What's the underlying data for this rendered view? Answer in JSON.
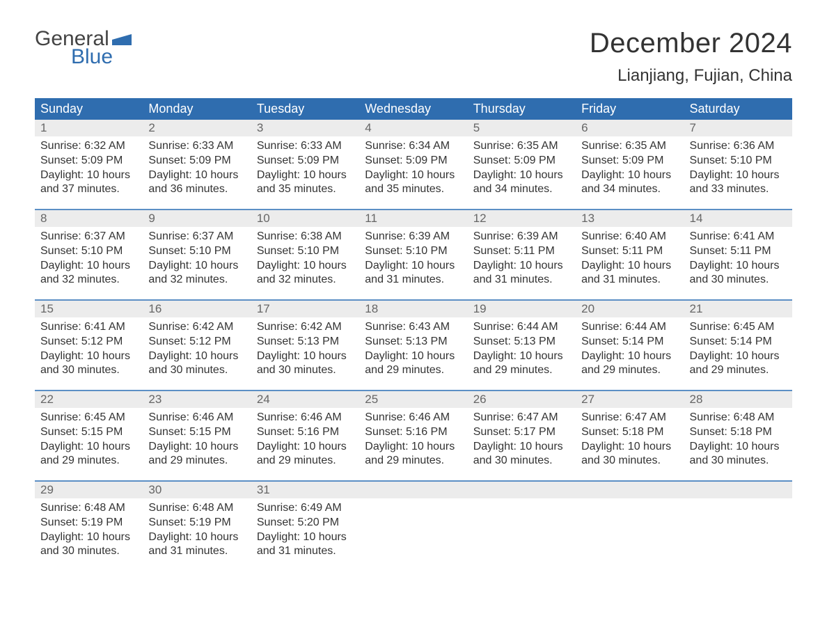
{
  "logo": {
    "word1": "General",
    "word2": "Blue"
  },
  "title": "December 2024",
  "location": "Lianjiang, Fujian, China",
  "theme": {
    "header_bg": "#2f6daf",
    "header_text": "#ffffff",
    "daynum_bg": "#ececec",
    "daynum_color": "#666666",
    "week_divider": "#5c8fc5",
    "body_text": "#333333",
    "background": "#ffffff",
    "title_fontsize": 40,
    "location_fontsize": 24,
    "dow_fontsize": 18,
    "body_fontsize": 16
  },
  "calendar": {
    "type": "calendar-table",
    "columns": [
      "Sunday",
      "Monday",
      "Tuesday",
      "Wednesday",
      "Thursday",
      "Friday",
      "Saturday"
    ],
    "weeks": [
      [
        {
          "day": "1",
          "sunrise": "Sunrise: 6:32 AM",
          "sunset": "Sunset: 5:09 PM",
          "daylight1": "Daylight: 10 hours",
          "daylight2": "and 37 minutes."
        },
        {
          "day": "2",
          "sunrise": "Sunrise: 6:33 AM",
          "sunset": "Sunset: 5:09 PM",
          "daylight1": "Daylight: 10 hours",
          "daylight2": "and 36 minutes."
        },
        {
          "day": "3",
          "sunrise": "Sunrise: 6:33 AM",
          "sunset": "Sunset: 5:09 PM",
          "daylight1": "Daylight: 10 hours",
          "daylight2": "and 35 minutes."
        },
        {
          "day": "4",
          "sunrise": "Sunrise: 6:34 AM",
          "sunset": "Sunset: 5:09 PM",
          "daylight1": "Daylight: 10 hours",
          "daylight2": "and 35 minutes."
        },
        {
          "day": "5",
          "sunrise": "Sunrise: 6:35 AM",
          "sunset": "Sunset: 5:09 PM",
          "daylight1": "Daylight: 10 hours",
          "daylight2": "and 34 minutes."
        },
        {
          "day": "6",
          "sunrise": "Sunrise: 6:35 AM",
          "sunset": "Sunset: 5:09 PM",
          "daylight1": "Daylight: 10 hours",
          "daylight2": "and 34 minutes."
        },
        {
          "day": "7",
          "sunrise": "Sunrise: 6:36 AM",
          "sunset": "Sunset: 5:10 PM",
          "daylight1": "Daylight: 10 hours",
          "daylight2": "and 33 minutes."
        }
      ],
      [
        {
          "day": "8",
          "sunrise": "Sunrise: 6:37 AM",
          "sunset": "Sunset: 5:10 PM",
          "daylight1": "Daylight: 10 hours",
          "daylight2": "and 32 minutes."
        },
        {
          "day": "9",
          "sunrise": "Sunrise: 6:37 AM",
          "sunset": "Sunset: 5:10 PM",
          "daylight1": "Daylight: 10 hours",
          "daylight2": "and 32 minutes."
        },
        {
          "day": "10",
          "sunrise": "Sunrise: 6:38 AM",
          "sunset": "Sunset: 5:10 PM",
          "daylight1": "Daylight: 10 hours",
          "daylight2": "and 32 minutes."
        },
        {
          "day": "11",
          "sunrise": "Sunrise: 6:39 AM",
          "sunset": "Sunset: 5:10 PM",
          "daylight1": "Daylight: 10 hours",
          "daylight2": "and 31 minutes."
        },
        {
          "day": "12",
          "sunrise": "Sunrise: 6:39 AM",
          "sunset": "Sunset: 5:11 PM",
          "daylight1": "Daylight: 10 hours",
          "daylight2": "and 31 minutes."
        },
        {
          "day": "13",
          "sunrise": "Sunrise: 6:40 AM",
          "sunset": "Sunset: 5:11 PM",
          "daylight1": "Daylight: 10 hours",
          "daylight2": "and 31 minutes."
        },
        {
          "day": "14",
          "sunrise": "Sunrise: 6:41 AM",
          "sunset": "Sunset: 5:11 PM",
          "daylight1": "Daylight: 10 hours",
          "daylight2": "and 30 minutes."
        }
      ],
      [
        {
          "day": "15",
          "sunrise": "Sunrise: 6:41 AM",
          "sunset": "Sunset: 5:12 PM",
          "daylight1": "Daylight: 10 hours",
          "daylight2": "and 30 minutes."
        },
        {
          "day": "16",
          "sunrise": "Sunrise: 6:42 AM",
          "sunset": "Sunset: 5:12 PM",
          "daylight1": "Daylight: 10 hours",
          "daylight2": "and 30 minutes."
        },
        {
          "day": "17",
          "sunrise": "Sunrise: 6:42 AM",
          "sunset": "Sunset: 5:13 PM",
          "daylight1": "Daylight: 10 hours",
          "daylight2": "and 30 minutes."
        },
        {
          "day": "18",
          "sunrise": "Sunrise: 6:43 AM",
          "sunset": "Sunset: 5:13 PM",
          "daylight1": "Daylight: 10 hours",
          "daylight2": "and 29 minutes."
        },
        {
          "day": "19",
          "sunrise": "Sunrise: 6:44 AM",
          "sunset": "Sunset: 5:13 PM",
          "daylight1": "Daylight: 10 hours",
          "daylight2": "and 29 minutes."
        },
        {
          "day": "20",
          "sunrise": "Sunrise: 6:44 AM",
          "sunset": "Sunset: 5:14 PM",
          "daylight1": "Daylight: 10 hours",
          "daylight2": "and 29 minutes."
        },
        {
          "day": "21",
          "sunrise": "Sunrise: 6:45 AM",
          "sunset": "Sunset: 5:14 PM",
          "daylight1": "Daylight: 10 hours",
          "daylight2": "and 29 minutes."
        }
      ],
      [
        {
          "day": "22",
          "sunrise": "Sunrise: 6:45 AM",
          "sunset": "Sunset: 5:15 PM",
          "daylight1": "Daylight: 10 hours",
          "daylight2": "and 29 minutes."
        },
        {
          "day": "23",
          "sunrise": "Sunrise: 6:46 AM",
          "sunset": "Sunset: 5:15 PM",
          "daylight1": "Daylight: 10 hours",
          "daylight2": "and 29 minutes."
        },
        {
          "day": "24",
          "sunrise": "Sunrise: 6:46 AM",
          "sunset": "Sunset: 5:16 PM",
          "daylight1": "Daylight: 10 hours",
          "daylight2": "and 29 minutes."
        },
        {
          "day": "25",
          "sunrise": "Sunrise: 6:46 AM",
          "sunset": "Sunset: 5:16 PM",
          "daylight1": "Daylight: 10 hours",
          "daylight2": "and 29 minutes."
        },
        {
          "day": "26",
          "sunrise": "Sunrise: 6:47 AM",
          "sunset": "Sunset: 5:17 PM",
          "daylight1": "Daylight: 10 hours",
          "daylight2": "and 30 minutes."
        },
        {
          "day": "27",
          "sunrise": "Sunrise: 6:47 AM",
          "sunset": "Sunset: 5:18 PM",
          "daylight1": "Daylight: 10 hours",
          "daylight2": "and 30 minutes."
        },
        {
          "day": "28",
          "sunrise": "Sunrise: 6:48 AM",
          "sunset": "Sunset: 5:18 PM",
          "daylight1": "Daylight: 10 hours",
          "daylight2": "and 30 minutes."
        }
      ],
      [
        {
          "day": "29",
          "sunrise": "Sunrise: 6:48 AM",
          "sunset": "Sunset: 5:19 PM",
          "daylight1": "Daylight: 10 hours",
          "daylight2": "and 30 minutes."
        },
        {
          "day": "30",
          "sunrise": "Sunrise: 6:48 AM",
          "sunset": "Sunset: 5:19 PM",
          "daylight1": "Daylight: 10 hours",
          "daylight2": "and 31 minutes."
        },
        {
          "day": "31",
          "sunrise": "Sunrise: 6:49 AM",
          "sunset": "Sunset: 5:20 PM",
          "daylight1": "Daylight: 10 hours",
          "daylight2": "and 31 minutes."
        },
        null,
        null,
        null,
        null
      ]
    ]
  }
}
